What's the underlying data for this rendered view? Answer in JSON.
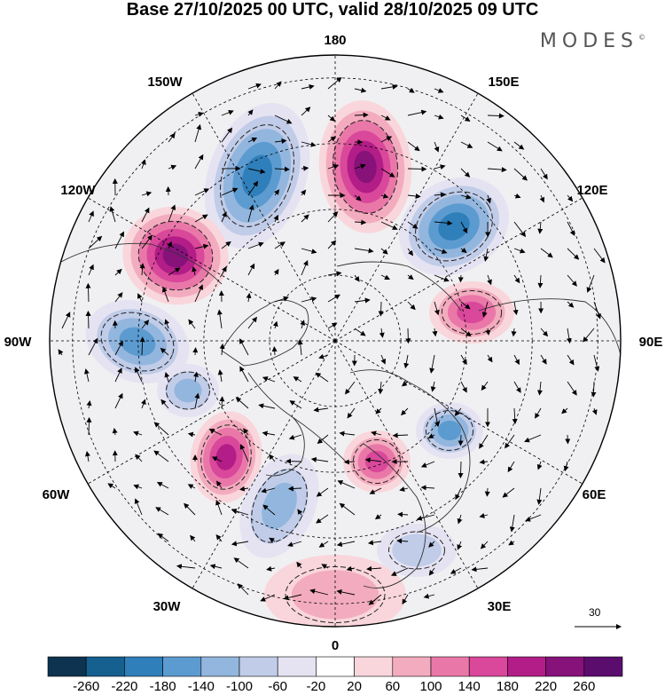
{
  "title": "Base 27/10/2025 00 UTC, valid 28/10/2025 09 UTC",
  "logo": "MODES",
  "logo_mark": "©",
  "longitude_labels": [
    "180",
    "150E",
    "120E",
    "90E",
    "60E",
    "30E",
    "0",
    "30W",
    "60W",
    "90W",
    "120W",
    "150W"
  ],
  "reference_vector": "30",
  "colorbar": {
    "labels": [
      "-260",
      "-220",
      "-180",
      "-140",
      "-100",
      "-60",
      "-20",
      "20",
      "60",
      "100",
      "140",
      "180",
      "220",
      "260"
    ],
    "colors": [
      "#0d3350",
      "#15608f",
      "#2f7fbb",
      "#5c9bd0",
      "#93b6de",
      "#c0cce8",
      "#e5e3f2",
      "#ffffff",
      "#f9d6dc",
      "#f3acbf",
      "#e978a8",
      "#d9489a",
      "#b31d87",
      "#86127a",
      "#5b0d6e"
    ]
  },
  "anomaly_centers": [
    {
      "id": "neg-150w",
      "sign": "negative",
      "strength": 0.85
    },
    {
      "id": "pos-165e",
      "sign": "positive",
      "strength": 0.95
    },
    {
      "id": "neg-135e",
      "sign": "negative",
      "strength": 0.85
    },
    {
      "id": "pos-120w",
      "sign": "positive",
      "strength": 0.95
    },
    {
      "id": "pos-100e",
      "sign": "positive",
      "strength": 0.7
    },
    {
      "id": "neg-100w",
      "sign": "negative",
      "strength": 0.6
    },
    {
      "id": "neg-90w",
      "sign": "negative",
      "strength": 0.55
    },
    {
      "id": "pos-60w",
      "sign": "positive",
      "strength": 0.75
    },
    {
      "id": "neg-40w",
      "sign": "negative",
      "strength": 0.5
    },
    {
      "id": "neg-50e",
      "sign": "negative",
      "strength": 0.6
    },
    {
      "id": "pos-25e",
      "sign": "positive",
      "strength": 0.6
    },
    {
      "id": "pos-0",
      "sign": "positive",
      "strength": 0.35
    },
    {
      "id": "neg-30e",
      "sign": "negative",
      "strength": 0.35
    }
  ]
}
